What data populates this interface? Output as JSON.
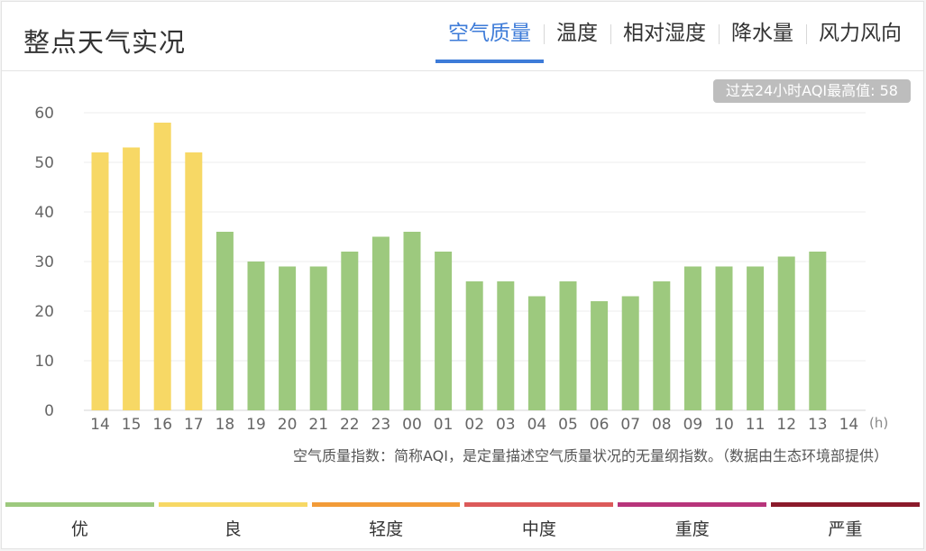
{
  "header": {
    "title": "整点天气实况",
    "tabs": [
      {
        "label": "空气质量",
        "active": true
      },
      {
        "label": "温度",
        "active": false
      },
      {
        "label": "相对湿度",
        "active": false
      },
      {
        "label": "降水量",
        "active": false
      },
      {
        "label": "风力风向",
        "active": false
      }
    ]
  },
  "max_badge": "过去24小时AQI最高值: 58",
  "footnote": "空气质量指数：简称AQI，是定量描述空气质量状况的无量纲指数。（数据由生态环境部提供）",
  "chart_data": {
    "type": "bar",
    "categories": [
      "14",
      "15",
      "16",
      "17",
      "18",
      "19",
      "20",
      "21",
      "22",
      "23",
      "00",
      "01",
      "02",
      "03",
      "04",
      "05",
      "06",
      "07",
      "08",
      "09",
      "10",
      "11",
      "12",
      "13",
      "14"
    ],
    "values": [
      52,
      53,
      58,
      52,
      36,
      30,
      29,
      29,
      32,
      35,
      36,
      32,
      26,
      26,
      23,
      26,
      22,
      23,
      26,
      29,
      29,
      29,
      31,
      32,
      null
    ],
    "xunit": "(h)",
    "ylim": [
      0,
      60
    ],
    "yticks": [
      0,
      10,
      20,
      30,
      40,
      50,
      60
    ],
    "grid": true,
    "colors": {
      "good": "#9dc97e",
      "moderate": "#f7d865"
    }
  },
  "legend": [
    {
      "label": "优",
      "color": "#9dc97e"
    },
    {
      "label": "良",
      "color": "#f7d865"
    },
    {
      "label": "轻度",
      "color": "#f29b38"
    },
    {
      "label": "中度",
      "color": "#dc5a5a"
    },
    {
      "label": "重度",
      "color": "#b7347b"
    },
    {
      "label": "严重",
      "color": "#8b1a2b"
    }
  ]
}
